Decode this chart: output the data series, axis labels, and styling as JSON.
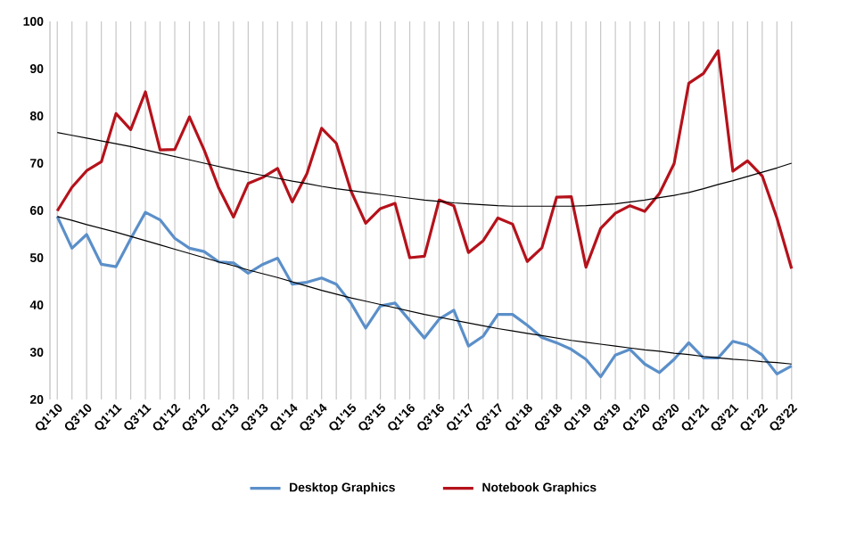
{
  "chart_data": {
    "type": "line",
    "categories": [
      "Q1'10",
      null,
      "Q3'10",
      null,
      "Q1'11",
      null,
      "Q3'11",
      null,
      "Q1'12",
      null,
      "Q3'12",
      null,
      "Q1'13",
      null,
      "Q3'13",
      null,
      "Q1'14",
      null,
      "Q3'14",
      null,
      "Q1'15",
      null,
      "Q3'15",
      null,
      "Q1'16",
      null,
      "Q3'16",
      null,
      "Q1'17",
      null,
      "Q3'17",
      null,
      "Q1'18",
      null,
      "Q3'18",
      null,
      "Q1'19",
      null,
      "Q3'19",
      null,
      "Q1'20",
      null,
      "Q3'20",
      null,
      "Q1'21",
      null,
      "Q3'21",
      null,
      "Q1'22",
      null,
      "Q3'22"
    ],
    "series": [
      {
        "name": "Desktop Graphics",
        "color": "#5b8fc9",
        "values": [
          58.7,
          52.0,
          54.9,
          48.6,
          48.1,
          54.0,
          59.6,
          58.0,
          54.1,
          52.0,
          51.3,
          49.1,
          48.9,
          46.7,
          48.6,
          49.9,
          44.4,
          44.8,
          45.7,
          44.4,
          40.4,
          35.1,
          39.8,
          40.4,
          36.7,
          33.0,
          37.0,
          38.9,
          31.3,
          33.4,
          38.0,
          38.0,
          35.7,
          33.1,
          32.0,
          30.6,
          28.5,
          24.8,
          29.4,
          30.6,
          27.5,
          25.7,
          28.5,
          32.0,
          28.8,
          28.8,
          32.3,
          31.5,
          29.4,
          25.4,
          27.1
        ]
      },
      {
        "name": "Notebook Graphics",
        "color": "#b5121b",
        "values": [
          59.9,
          64.9,
          68.4,
          70.3,
          80.5,
          77.1,
          85.1,
          72.8,
          72.9,
          79.8,
          72.8,
          64.7,
          58.6,
          65.7,
          67.0,
          68.9,
          61.8,
          67.8,
          77.4,
          74.2,
          64.1,
          57.3,
          60.4,
          61.5,
          50.0,
          50.3,
          62.2,
          61.0,
          51.1,
          53.6,
          58.4,
          57.1,
          49.2,
          52.1,
          62.8,
          62.9,
          48.0,
          56.2,
          59.4,
          61.0,
          59.8,
          63.6,
          69.9,
          86.9,
          89.0,
          93.8,
          68.3,
          70.5,
          67.3,
          58.4,
          47.7
        ]
      },
      {
        "color": "#000000",
        "values": [
          58.7,
          57.9,
          57.0,
          56.2,
          55.4,
          54.5,
          53.6,
          52.7,
          51.8,
          50.9,
          50.0,
          49.1,
          48.3,
          47.4,
          46.6,
          45.8,
          44.9,
          44.0,
          43.1,
          42.3,
          41.5,
          40.8,
          40.1,
          39.4,
          38.7,
          38.0,
          37.4,
          36.8,
          36.2,
          35.6,
          35.0,
          34.5,
          34.0,
          33.5,
          33.0,
          32.5,
          32.1,
          31.7,
          31.3,
          30.9,
          30.5,
          30.2,
          29.8,
          29.5,
          29.1,
          28.8,
          28.5,
          28.3,
          28.0,
          27.8,
          27.5
        ]
      },
      {
        "color": "#000000",
        "values": [
          76.5,
          75.9,
          75.3,
          74.7,
          74.1,
          73.5,
          72.8,
          72.1,
          71.4,
          70.7,
          70.0,
          69.3,
          68.6,
          68.0,
          67.4,
          66.8,
          66.2,
          65.7,
          65.1,
          64.6,
          64.2,
          63.8,
          63.4,
          63.0,
          62.6,
          62.2,
          61.9,
          61.6,
          61.4,
          61.2,
          61.0,
          60.9,
          60.9,
          60.9,
          60.9,
          60.9,
          61.0,
          61.2,
          61.4,
          61.8,
          62.2,
          62.7,
          63.2,
          63.8,
          64.6,
          65.5,
          66.3,
          67.2,
          68.1,
          69.0,
          70.0
        ]
      }
    ],
    "ylim": [
      20,
      100
    ],
    "yticks": [
      20,
      30,
      40,
      50,
      60,
      70,
      80,
      90,
      100
    ],
    "grid": "x",
    "legend": "bottom",
    "marker": "none",
    "line_style": "solid"
  }
}
